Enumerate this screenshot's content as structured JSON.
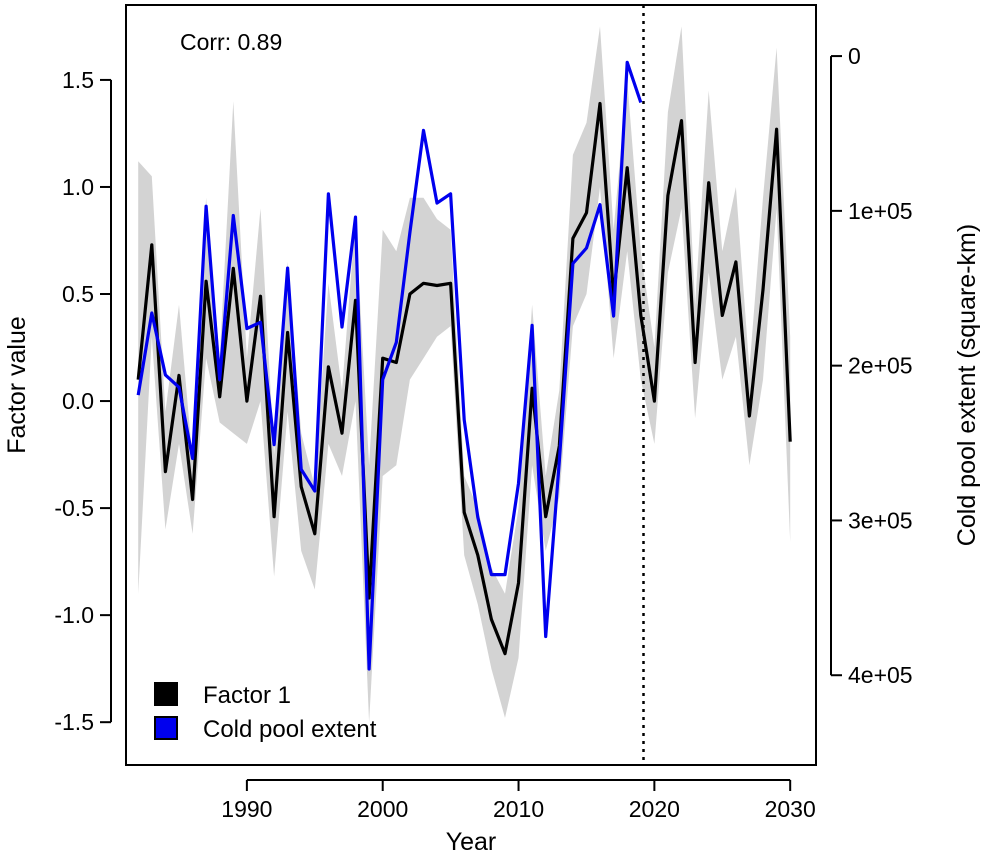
{
  "chart_data": {
    "type": "line",
    "annotation": "Corr: 0.89",
    "xlabel": "Year",
    "ylabel": "Factor value",
    "y2label": "Cold pool extent (square-km)",
    "xlim": [
      1981.1,
      2031.9
    ],
    "ylim": [
      -1.7,
      1.85
    ],
    "y2lim": [
      -33000,
      458000
    ],
    "x_ticks": [
      1990,
      2000,
      2010,
      2020,
      2030
    ],
    "x_tick_labels": [
      "1990",
      "2000",
      "2010",
      "2020",
      "2030"
    ],
    "y_ticks": [
      -1.5,
      -1.0,
      -0.5,
      0.0,
      0.5,
      1.0,
      1.5
    ],
    "y_tick_labels": [
      "-1.5",
      "-1.0",
      "-0.5",
      "0.0",
      "0.5",
      "1.0",
      "1.5"
    ],
    "y2_ticks": [
      0,
      100000,
      200000,
      300000,
      400000
    ],
    "y2_tick_labels": [
      "0",
      "1e+05",
      "2e+05",
      "3e+05",
      "4e+05"
    ],
    "y2_inverted": true,
    "vline_x": 2019.2,
    "legend_position": "bottom-left",
    "grid": false,
    "colors": {
      "factor": "#000000",
      "cold_pool": "#0000ee",
      "band": "#d3d3d3",
      "frame": "#000000"
    },
    "series": [
      {
        "name": "Factor 1",
        "axis": "left",
        "x": [
          1982,
          1983,
          1984,
          1985,
          1986,
          1987,
          1988,
          1989,
          1990,
          1991,
          1992,
          1993,
          1994,
          1995,
          1996,
          1997,
          1998,
          1999,
          2000,
          2001,
          2002,
          2003,
          2004,
          2005,
          2006,
          2007,
          2008,
          2009,
          2010,
          2011,
          2012,
          2013,
          2014,
          2015,
          2016,
          2017,
          2018,
          2019,
          2020,
          2021,
          2022,
          2023,
          2024,
          2025,
          2026,
          2027,
          2028,
          2029,
          2030
        ],
        "values": [
          0.1,
          0.73,
          -0.33,
          0.12,
          -0.46,
          0.56,
          0.02,
          0.62,
          0.0,
          0.49,
          -0.54,
          0.32,
          -0.4,
          -0.62,
          0.16,
          -0.15,
          0.47,
          -0.92,
          0.2,
          0.18,
          0.5,
          0.55,
          0.54,
          0.55,
          -0.52,
          -0.72,
          -1.02,
          -1.18,
          -0.85,
          0.06,
          -0.54,
          -0.21,
          0.76,
          0.88,
          1.39,
          0.49,
          1.09,
          0.4,
          0.0,
          0.96,
          1.31,
          0.18,
          1.02,
          0.4,
          0.65,
          -0.07,
          0.52,
          1.27,
          -0.19
        ],
        "lower": [
          -0.9,
          0.3,
          -0.6,
          -0.2,
          -0.62,
          0.2,
          -0.1,
          -0.15,
          -0.2,
          0.0,
          -0.82,
          -0.05,
          -0.7,
          -0.88,
          -0.2,
          -0.35,
          0.0,
          -1.5,
          -0.35,
          -0.3,
          0.1,
          0.2,
          0.3,
          0.35,
          -0.72,
          -0.95,
          -1.25,
          -1.48,
          -1.2,
          -0.3,
          -0.7,
          -0.45,
          0.35,
          0.5,
          1.0,
          0.2,
          0.7,
          0.1,
          -0.2,
          0.6,
          0.9,
          -0.08,
          0.6,
          0.1,
          0.3,
          -0.3,
          0.1,
          0.9,
          -0.66
        ],
        "upper": [
          1.12,
          1.05,
          -0.05,
          0.45,
          -0.28,
          0.95,
          0.2,
          1.4,
          0.2,
          0.9,
          -0.25,
          0.65,
          -0.15,
          -0.4,
          0.55,
          0.05,
          0.85,
          -0.3,
          0.8,
          0.7,
          0.95,
          0.95,
          0.85,
          0.8,
          -0.35,
          -0.5,
          -0.78,
          -0.9,
          -0.5,
          0.45,
          -0.35,
          0.05,
          1.15,
          1.3,
          1.75,
          0.8,
          1.5,
          0.7,
          0.25,
          1.35,
          1.75,
          0.45,
          1.45,
          0.7,
          1.0,
          0.15,
          0.95,
          1.65,
          0.3
        ]
      },
      {
        "name": "Cold pool extent",
        "axis": "right",
        "x": [
          1982,
          1983,
          1984,
          1985,
          1986,
          1987,
          1988,
          1989,
          1990,
          1991,
          1992,
          1993,
          1994,
          1995,
          1996,
          1997,
          1998,
          1999,
          2000,
          2001,
          2002,
          2003,
          2004,
          2005,
          2006,
          2007,
          2008,
          2009,
          2010,
          2011,
          2012,
          2013,
          2014,
          2015,
          2016,
          2017,
          2018,
          2019
        ],
        "values": [
          219000,
          166000,
          206000,
          214000,
          260000,
          97000,
          209000,
          103000,
          176000,
          172000,
          251000,
          137000,
          267000,
          281000,
          89000,
          175000,
          104000,
          396000,
          209000,
          185000,
          114000,
          48000,
          95000,
          89000,
          235000,
          298000,
          335000,
          335000,
          276000,
          174000,
          375000,
          262000,
          134000,
          124000,
          96000,
          168000,
          4000,
          30000
        ]
      }
    ]
  }
}
